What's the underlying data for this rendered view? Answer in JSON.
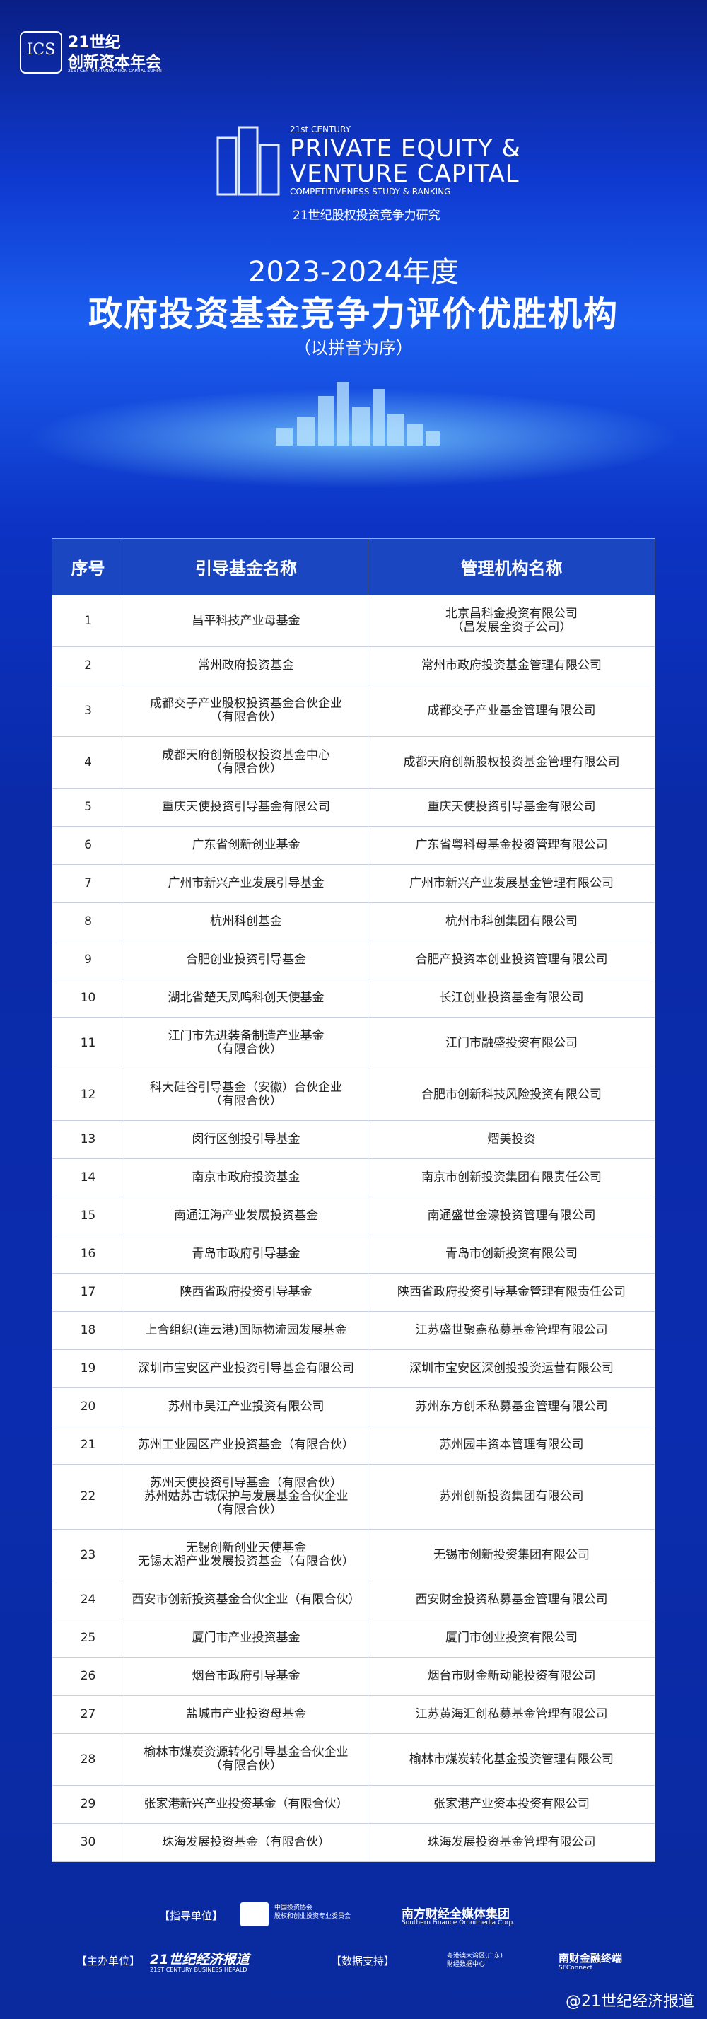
{
  "logo": {
    "mark": "ICS",
    "line1": "21世纪",
    "line2": "创新资本年会",
    "sub": "21ST CENTURY INNOVATION CAPITAL SUMMIT"
  },
  "brand": {
    "small": "21st CENTURY",
    "line1": "PRIVATE EQUITY &",
    "line2": "VENTURE CAPITAL",
    "line3": "COMPETITIVENESS STUDY & RANKING",
    "cn": "21世纪股权投资竞争力研究"
  },
  "header": {
    "year": "2023-2024年度",
    "title": "政府投资基金竞争力评价优胜机构",
    "note": "（以拼音为序）"
  },
  "table": {
    "columns": [
      "序号",
      "引导基金名称",
      "管理机构名称"
    ],
    "rows": [
      [
        1,
        "昌平科技产业母基金",
        "北京昌科金投资有限公司\n（昌发展全资子公司）"
      ],
      [
        2,
        "常州政府投资基金",
        "常州市政府投资基金管理有限公司"
      ],
      [
        3,
        "成都交子产业股权投资基金合伙企业\n（有限合伙）",
        "成都交子产业基金管理有限公司"
      ],
      [
        4,
        "成都天府创新股权投资基金中心\n（有限合伙）",
        "成都天府创新股权投资基金管理有限公司"
      ],
      [
        5,
        "重庆天使投资引导基金有限公司",
        "重庆天使投资引导基金有限公司"
      ],
      [
        6,
        "广东省创新创业基金",
        "广东省粤科母基金投资管理有限公司"
      ],
      [
        7,
        "广州市新兴产业发展引导基金",
        "广州市新兴产业发展基金管理有限公司"
      ],
      [
        8,
        "杭州科创基金",
        "杭州市科创集团有限公司"
      ],
      [
        9,
        "合肥创业投资引导基金",
        "合肥产投资本创业投资管理有限公司"
      ],
      [
        10,
        "湖北省楚天凤鸣科创天使基金",
        "长江创业投资基金有限公司"
      ],
      [
        11,
        "江门市先进装备制造产业基金\n（有限合伙）",
        "江门市融盛投资有限公司"
      ],
      [
        12,
        "科大硅谷引导基金（安徽）合伙企业\n（有限合伙）",
        "合肥市创新科技风险投资有限公司"
      ],
      [
        13,
        "闵行区创投引导基金",
        "熠美投资"
      ],
      [
        14,
        "南京市政府投资基金",
        "南京市创新投资集团有限责任公司"
      ],
      [
        15,
        "南通江海产业发展投资基金",
        "南通盛世金濠投资管理有限公司"
      ],
      [
        16,
        "青岛市政府引导基金",
        "青岛市创新投资有限公司"
      ],
      [
        17,
        "陕西省政府投资引导基金",
        "陕西省政府投资引导基金管理有限责任公司"
      ],
      [
        18,
        "上合组织(连云港)国际物流园发展基金",
        "江苏盛世聚鑫私募基金管理有限公司"
      ],
      [
        19,
        "深圳市宝安区产业投资引导基金有限公司",
        "深圳市宝安区深创投投资运营有限公司"
      ],
      [
        20,
        "苏州市吴江产业投资有限公司",
        "苏州东方创禾私募基金管理有限公司"
      ],
      [
        21,
        "苏州工业园区产业投资基金（有限合伙）",
        "苏州园丰资本管理有限公司"
      ],
      [
        22,
        "苏州天使投资引导基金（有限合伙）\n苏州姑苏古城保护与发展基金合伙企业\n（有限合伙）",
        "苏州创新投资集团有限公司"
      ],
      [
        23,
        "无锡创新创业天使基金\n无锡太湖产业发展投资基金（有限合伙）",
        "无锡市创新投资集团有限公司"
      ],
      [
        24,
        "西安市创新投资基金合伙企业（有限合伙）",
        "西安财金投资私募基金管理有限公司"
      ],
      [
        25,
        "厦门市产业投资基金",
        "厦门市创业投资有限公司"
      ],
      [
        26,
        "烟台市政府引导基金",
        "烟台市财金新动能投资有限公司"
      ],
      [
        27,
        "盐城市产业投资母基金",
        "江苏黄海汇创私募基金管理有限公司"
      ],
      [
        28,
        "榆林市煤炭资源转化引导基金合伙企业\n（有限合伙）",
        "榆林市煤炭转化基金投资管理有限公司"
      ],
      [
        29,
        "张家港新兴产业投资基金（有限合伙）",
        "张家港产业资本投资有限公司"
      ],
      [
        30,
        "珠海发展投资基金（有限合伙）",
        "珠海发展投资基金管理有限公司"
      ]
    ]
  },
  "footer": {
    "guide_label": "【指导单位】",
    "guide1": "中国投资协会\n股权和创业投资专业委员会",
    "guide2": "南方财经全媒体集团",
    "guide2_en": "Southern Finance Omnimedia Corp.",
    "host_label": "【主办单位】",
    "host1": "21世纪经济报道",
    "host1_en": "21ST CENTURY BUSINESS HERALD",
    "data_label": "【数据支持】",
    "data1": "粤港澳大湾区(广东)\n财经数据中心",
    "data2": "南财金融终端",
    "data2_en": "SFConnect",
    "watermark": "@21世纪经济报道"
  }
}
